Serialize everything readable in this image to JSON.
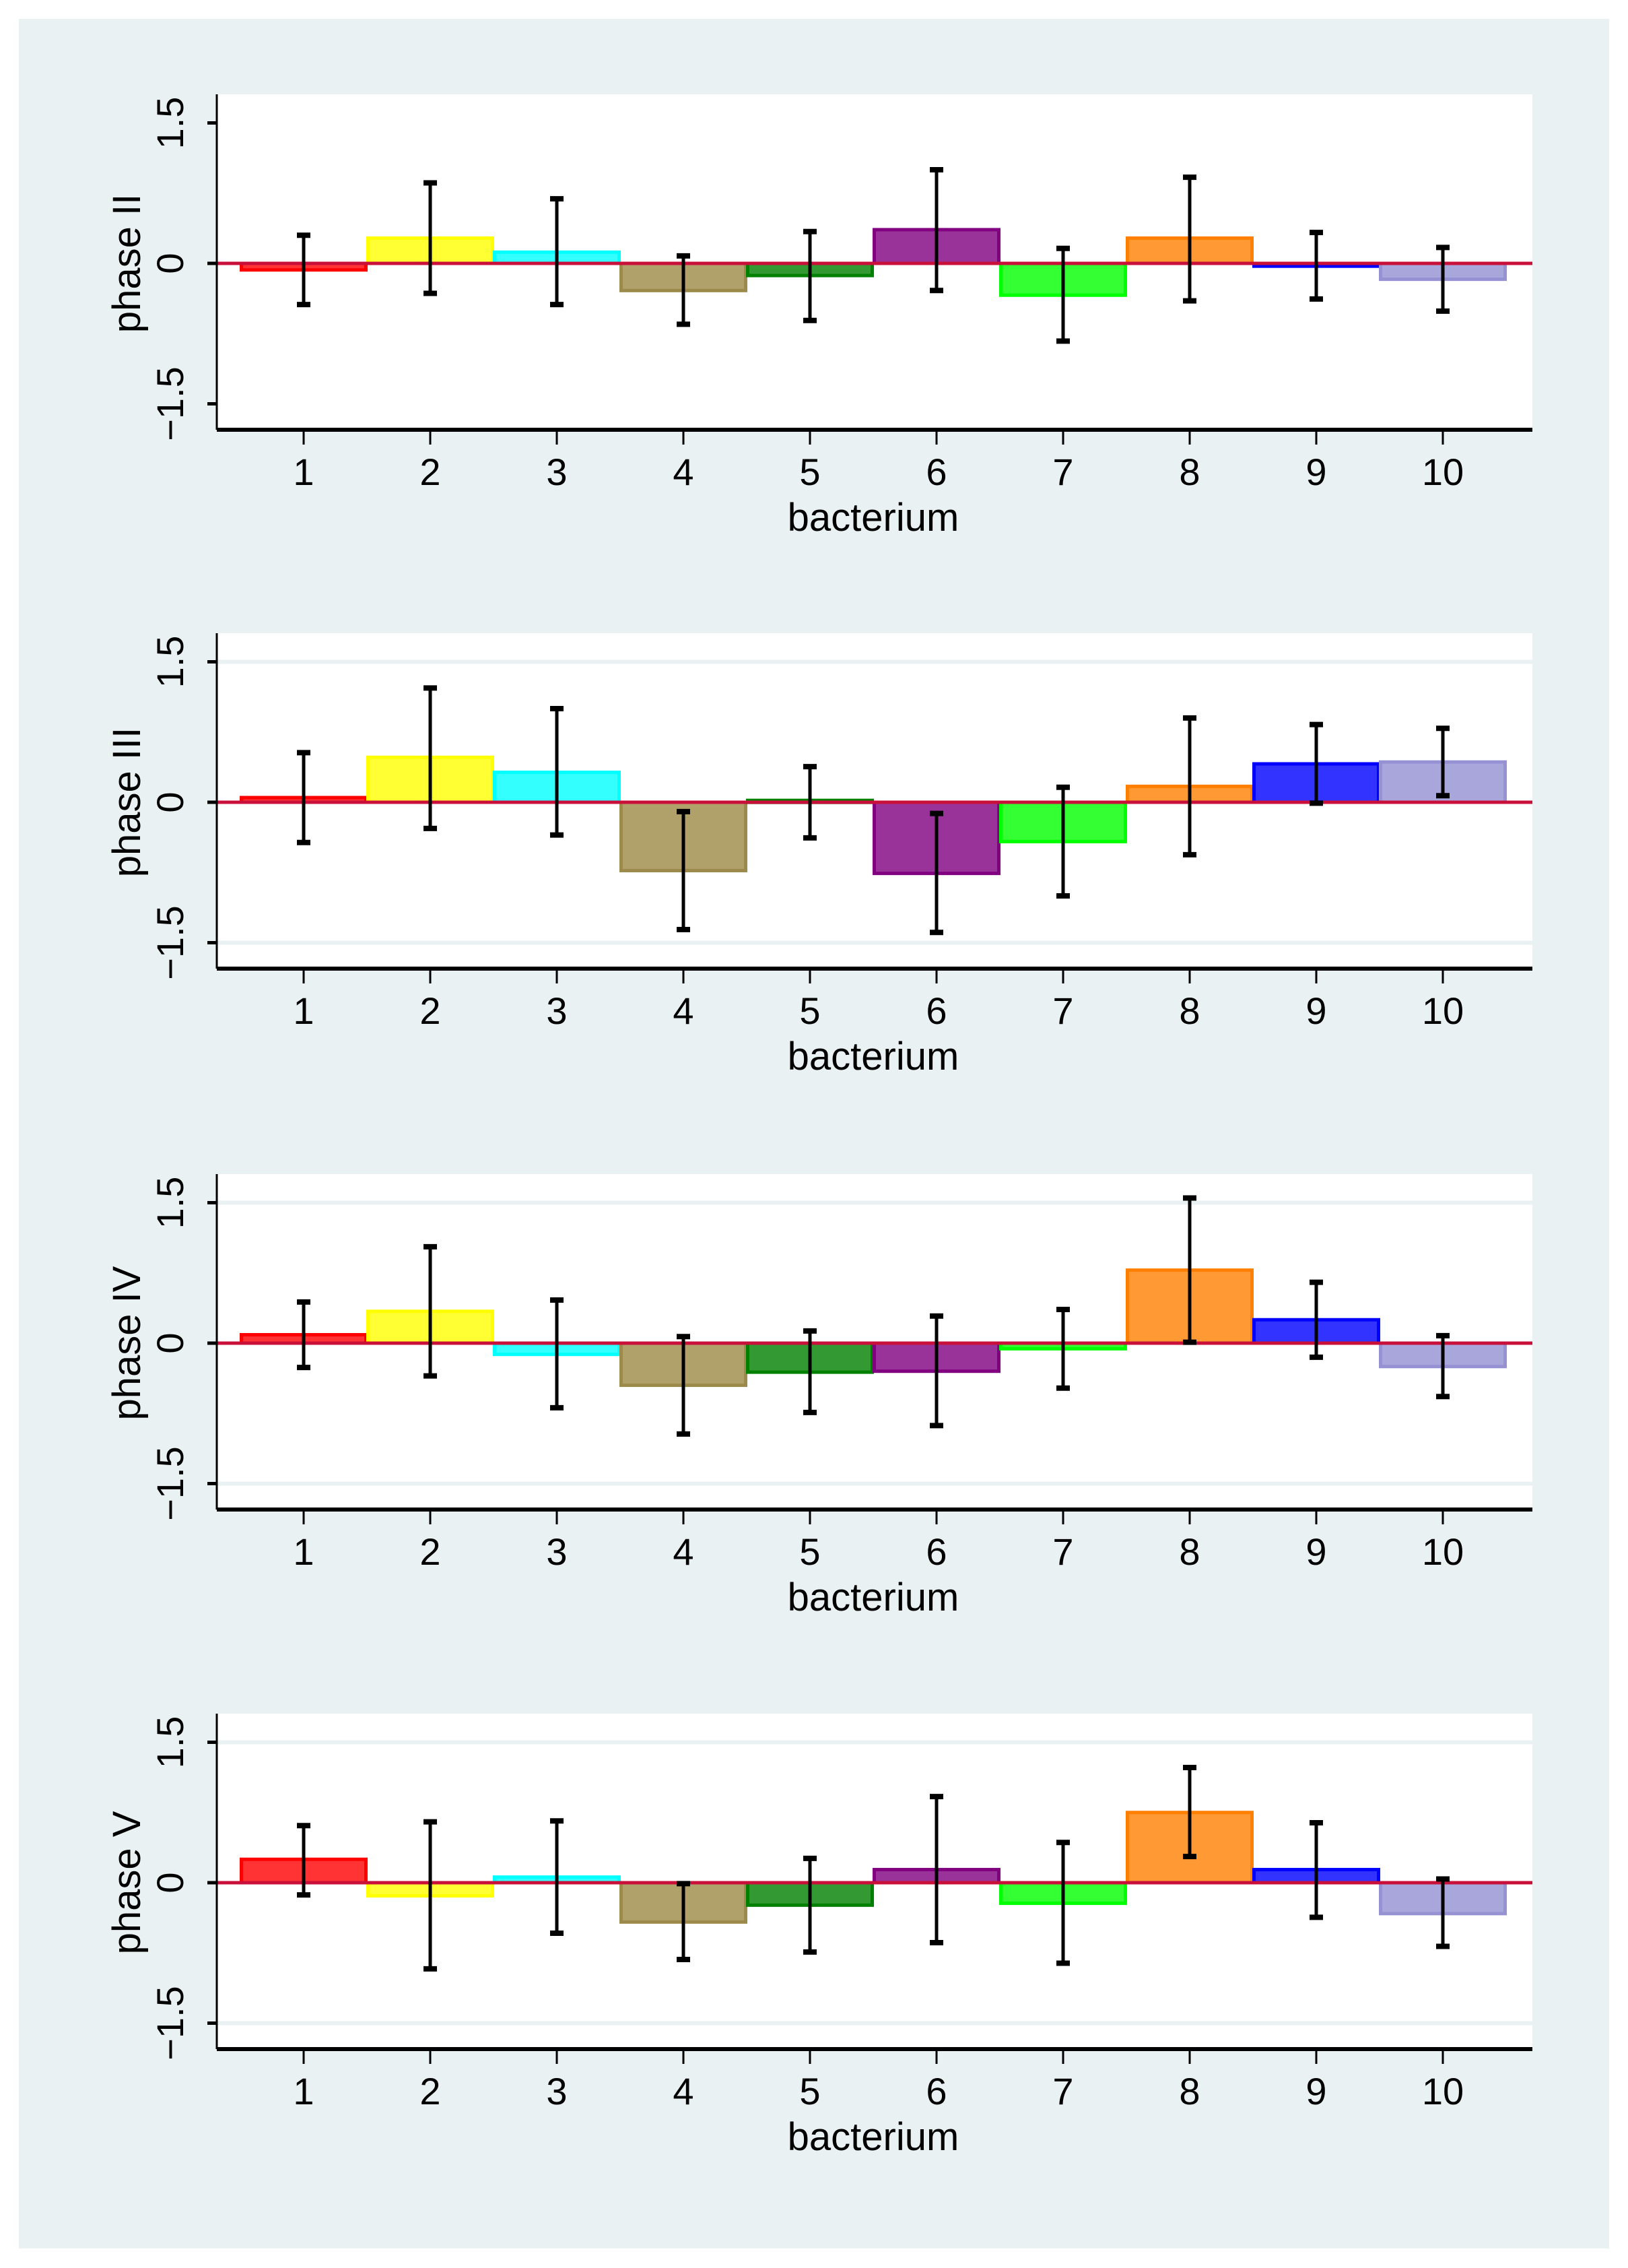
{
  "chart_data": [
    {
      "type": "bar",
      "title": "",
      "xlabel": "bacterium",
      "ylabel": "phase II",
      "categories": [
        "1",
        "2",
        "3",
        "4",
        "5",
        "6",
        "7",
        "8",
        "9",
        "10"
      ],
      "yticks": [
        "1.5",
        "0",
        "−1.5"
      ],
      "ylim": [
        -1.8,
        1.8
      ],
      "grid": false,
      "values": [
        -0.07,
        0.27,
        0.12,
        -0.29,
        -0.13,
        0.36,
        -0.34,
        0.27,
        -0.03,
        -0.17
      ],
      "error_low": [
        -0.44,
        -0.32,
        -0.44,
        -0.65,
        -0.61,
        -0.29,
        -0.83,
        -0.4,
        -0.38,
        -0.51
      ],
      "error_high": [
        0.3,
        0.86,
        0.69,
        0.08,
        0.34,
        1.0,
        0.16,
        0.92,
        0.33,
        0.17
      ]
    },
    {
      "type": "bar",
      "title": "",
      "xlabel": "bacterium",
      "ylabel": "phase III",
      "categories": [
        "1",
        "2",
        "3",
        "4",
        "5",
        "6",
        "7",
        "8",
        "9",
        "10"
      ],
      "yticks": [
        "1.5",
        "0",
        "−1.5"
      ],
      "ylim": [
        -1.8,
        1.8
      ],
      "grid": true,
      "values": [
        0.05,
        0.48,
        0.32,
        -0.73,
        0.02,
        -0.76,
        -0.42,
        0.17,
        0.41,
        0.43
      ],
      "error_low": [
        -0.43,
        -0.28,
        -0.35,
        -1.36,
        -0.38,
        -1.39,
        -1.0,
        -0.56,
        -0.01,
        0.07
      ],
      "error_high": [
        0.53,
        1.22,
        1.0,
        -0.1,
        0.38,
        -0.12,
        0.16,
        0.9,
        0.83,
        0.79
      ]
    },
    {
      "type": "bar",
      "title": "",
      "xlabel": "bacterium",
      "ylabel": "phase IV",
      "categories": [
        "1",
        "2",
        "3",
        "4",
        "5",
        "6",
        "7",
        "8",
        "9",
        "10"
      ],
      "yticks": [
        "1.5",
        "0",
        "−1.5"
      ],
      "ylim": [
        -1.8,
        1.8
      ],
      "grid": true,
      "values": [
        0.09,
        0.34,
        -0.12,
        -0.45,
        -0.31,
        -0.3,
        -0.06,
        0.78,
        0.25,
        -0.25
      ],
      "error_low": [
        -0.26,
        -0.35,
        -0.69,
        -0.97,
        -0.74,
        -0.88,
        -0.48,
        0.01,
        -0.15,
        -0.57
      ],
      "error_high": [
        0.44,
        1.03,
        0.46,
        0.07,
        0.13,
        0.29,
        0.36,
        1.55,
        0.65,
        0.08
      ]
    },
    {
      "type": "bar",
      "title": "",
      "xlabel": "bacterium",
      "ylabel": "phase V",
      "categories": [
        "1",
        "2",
        "3",
        "4",
        "5",
        "6",
        "7",
        "8",
        "9",
        "10"
      ],
      "yticks": [
        "1.5",
        "0",
        "−1.5"
      ],
      "ylim": [
        -1.8,
        1.8
      ],
      "grid": true,
      "values": [
        0.25,
        -0.14,
        0.06,
        -0.42,
        -0.24,
        0.14,
        -0.22,
        0.75,
        0.14,
        -0.33
      ],
      "error_low": [
        -0.13,
        -0.92,
        -0.54,
        -0.82,
        -0.74,
        -0.64,
        -0.86,
        0.28,
        -0.37,
        -0.68
      ],
      "error_high": [
        0.61,
        0.65,
        0.66,
        -0.01,
        0.26,
        0.92,
        0.43,
        1.23,
        0.64,
        0.04
      ]
    }
  ],
  "colors": {
    "bar_fills": [
      "#ff3333",
      "#ffff33",
      "#33ffff",
      "#b0a06a",
      "#339933",
      "#993399",
      "#33ff33",
      "#ff9933",
      "#3333ff",
      "#a9a6dc"
    ],
    "bar_strokes": [
      "#ff0000",
      "#ffff00",
      "#00ffff",
      "#9c8a4b",
      "#008000",
      "#800080",
      "#00ff00",
      "#ff7f00",
      "#0000ff",
      "#9591d3"
    ],
    "zero_line": "#c8103a",
    "background": "#eaf1f2",
    "grid": "#eaf1f2"
  }
}
